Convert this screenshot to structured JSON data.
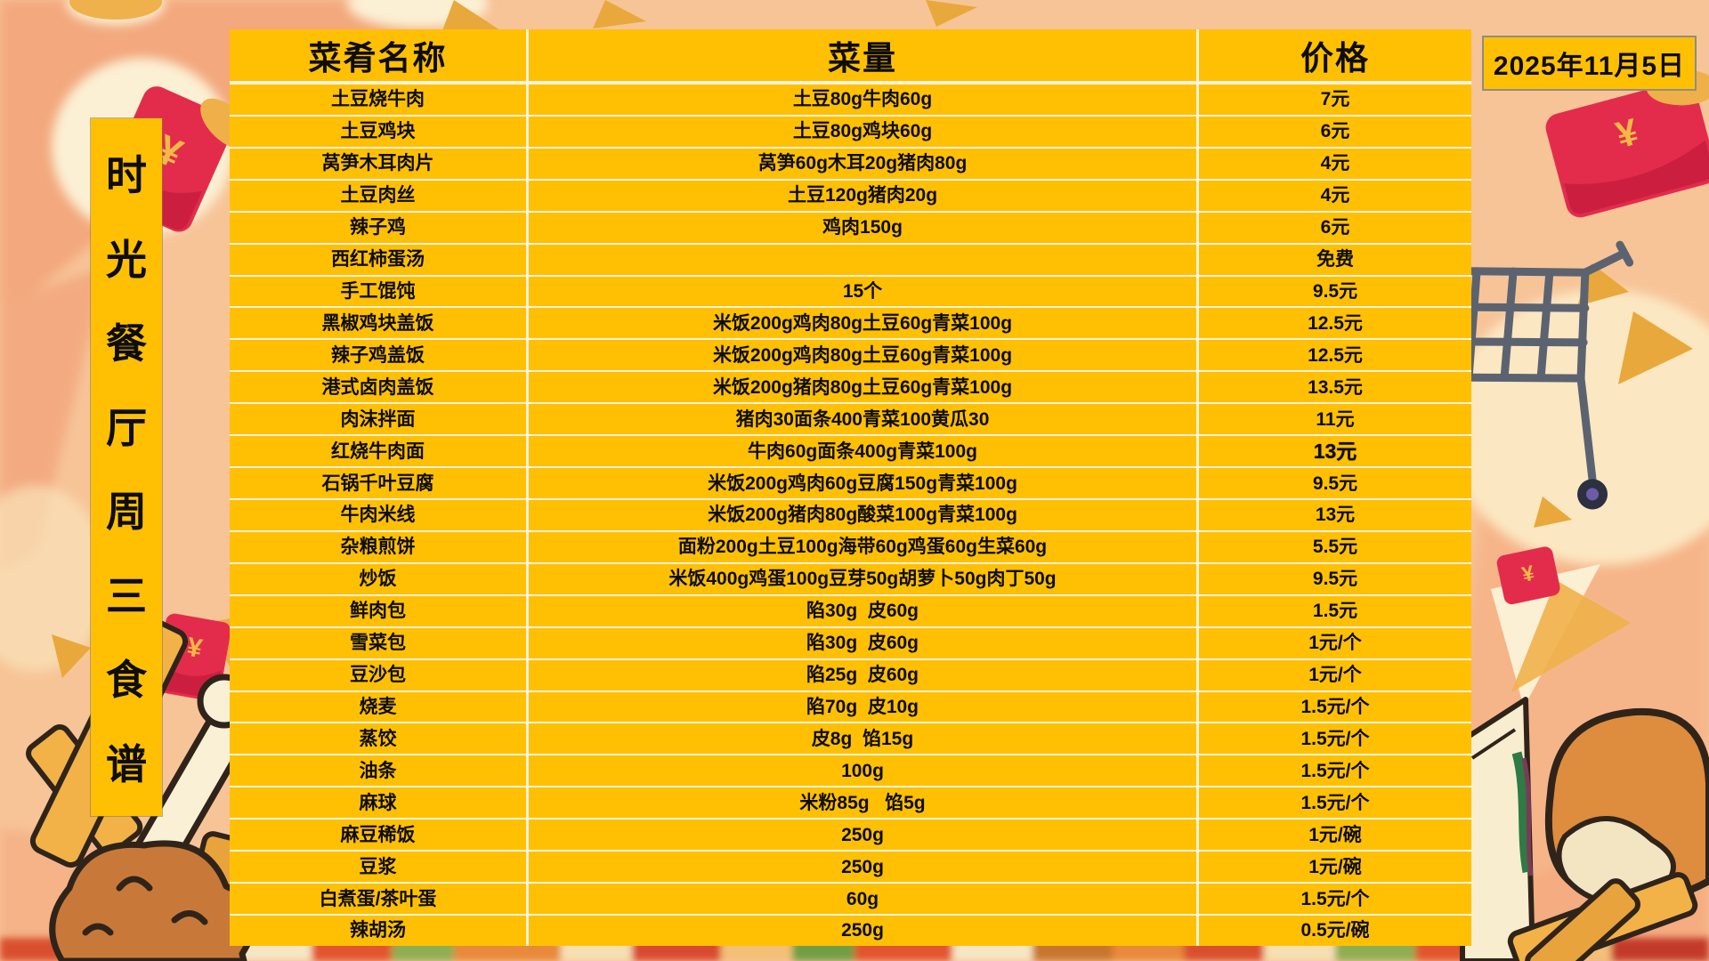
{
  "banner": {
    "text": "时光餐厅周三食谱"
  },
  "date": {
    "label": "2025年11月5日"
  },
  "symbols": {
    "yuan": "¥"
  },
  "colors": {
    "table_bg": "#FFC004",
    "divider": "#FBF3DB",
    "background_peach": "#F7C498",
    "red_envelope": "#E32C4C",
    "gold": "#E9A83B",
    "cart_gray": "#5C6370",
    "text": "#0E0D0B"
  },
  "decorations": [
    "red-envelope",
    "shopping-cart",
    "gold-confetti",
    "cream-blob",
    "french-fries",
    "fried-chicken-drumstick",
    "sandwich",
    "bitten-bun",
    "food-photo-strip"
  ],
  "table": {
    "headers": [
      "菜肴名称",
      "菜量",
      "价格"
    ],
    "rows": [
      {
        "name": "土豆烧牛肉",
        "portion": "土豆80g牛肉60g",
        "price": "7元"
      },
      {
        "name": "土豆鸡块",
        "portion": "土豆80g鸡块60g",
        "price": "6元"
      },
      {
        "name": "莴笋木耳肉片",
        "portion": "莴笋60g木耳20g猪肉80g",
        "price": "4元"
      },
      {
        "name": "土豆肉丝",
        "portion": "土豆120g猪肉20g",
        "price": "4元"
      },
      {
        "name": "辣子鸡",
        "portion": "鸡肉150g",
        "price": "6元"
      },
      {
        "name": "西红柿蛋汤",
        "portion": "",
        "price": "免费"
      },
      {
        "name": "手工馄饨",
        "portion": "15个",
        "price": "9.5元"
      },
      {
        "name": "黑椒鸡块盖饭",
        "portion": "米饭200g鸡肉80g土豆60g青菜100g",
        "price": "12.5元"
      },
      {
        "name": "辣子鸡盖饭",
        "portion": "米饭200g鸡肉80g土豆60g青菜100g",
        "price": "12.5元"
      },
      {
        "name": "港式卤肉盖饭",
        "portion": "米饭200g猪肉80g土豆60g青菜100g",
        "price": "13.5元"
      },
      {
        "name": "肉沫拌面",
        "portion": "猪肉30面条400青菜100黄瓜30",
        "price": "11元"
      },
      {
        "name": "红烧牛肉面",
        "portion": "牛肉60g面条400g青菜100g",
        "price": "13元",
        "price_bold": true
      },
      {
        "name": "石锅千叶豆腐",
        "portion": "米饭200g鸡肉60g豆腐150g青菜100g",
        "price": "9.5元"
      },
      {
        "name": "牛肉米线",
        "portion": "米饭200g猪肉80g酸菜100g青菜100g",
        "price": "13元"
      },
      {
        "name": "杂粮煎饼",
        "portion": "面粉200g土豆100g海带60g鸡蛋60g生菜60g",
        "price": "5.5元"
      },
      {
        "name": "炒饭",
        "portion": "米饭400g鸡蛋100g豆芽50g胡萝卜50g肉丁50g",
        "price": "9.5元"
      },
      {
        "name": "鲜肉包",
        "portion": "陷30g  皮60g",
        "price": "1.5元"
      },
      {
        "name": "雪菜包",
        "portion": "陷30g  皮60g",
        "price": "1元/个"
      },
      {
        "name": "豆沙包",
        "portion": "陷25g  皮60g",
        "price": "1元/个"
      },
      {
        "name": "烧麦",
        "portion": "陷70g  皮10g",
        "price": "1.5元/个"
      },
      {
        "name": "蒸饺",
        "portion": "皮8g  馅15g",
        "price": "1.5元/个"
      },
      {
        "name": "油条",
        "portion": "100g",
        "price": "1.5元/个"
      },
      {
        "name": "麻球",
        "portion": "米粉85g   馅5g",
        "price": "1.5元/个"
      },
      {
        "name": "麻豆稀饭",
        "portion": "250g",
        "price": "1元/碗"
      },
      {
        "name": "豆浆",
        "portion": "250g",
        "price": "1元/碗"
      },
      {
        "name": "白煮蛋/茶叶蛋",
        "portion": "60g",
        "price": "1.5元/个"
      },
      {
        "name": "辣胡汤",
        "portion": "250g",
        "price": "0.5元/碗"
      }
    ]
  }
}
